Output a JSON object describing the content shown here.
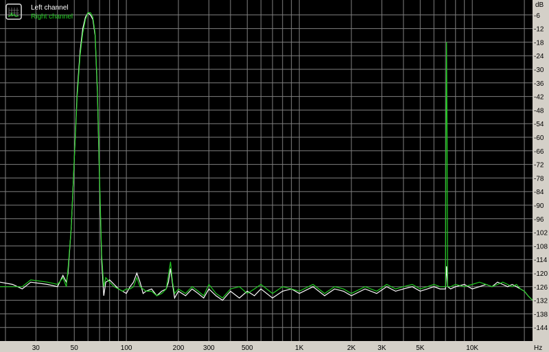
{
  "chart_data": {
    "type": "line",
    "title": "",
    "xlabel": "",
    "ylabel": "",
    "x_unit_label": "Hz",
    "y_unit_label": "dB",
    "x_scale": "log",
    "xlim": [
      18.6,
      22300
    ],
    "ylim": [
      -150,
      0
    ],
    "grid": true,
    "background": "#000000",
    "grid_color": "#808080",
    "legend_position": "top-left",
    "x_gridlines": [
      20,
      30,
      40,
      50,
      60,
      70,
      80,
      90,
      100,
      200,
      300,
      400,
      500,
      600,
      700,
      800,
      900,
      1000,
      2000,
      3000,
      4000,
      5000,
      6000,
      7000,
      8000,
      9000,
      10000,
      20000
    ],
    "x_tick_labels": [
      {
        "value": 30,
        "label": "30"
      },
      {
        "value": 50,
        "label": "50"
      },
      {
        "value": 100,
        "label": "100"
      },
      {
        "value": 200,
        "label": "200"
      },
      {
        "value": 300,
        "label": "300"
      },
      {
        "value": 500,
        "label": "500"
      },
      {
        "value": 1000,
        "label": "1K"
      },
      {
        "value": 2000,
        "label": "2K"
      },
      {
        "value": 3000,
        "label": "3K"
      },
      {
        "value": 5000,
        "label": "5K"
      },
      {
        "value": 10000,
        "label": "10K"
      }
    ],
    "y_ticks": [
      -6,
      -12,
      -18,
      -24,
      -30,
      -36,
      -42,
      -48,
      -54,
      -60,
      -66,
      -72,
      -78,
      -84,
      -90,
      -96,
      -102,
      -108,
      -114,
      -120,
      -126,
      -132,
      -138,
      -144
    ],
    "series": [
      {
        "name": "Left channel",
        "color": "#ffffff",
        "x": [
          18.6,
          22,
          25,
          28,
          35,
          40,
          43,
          45,
          46,
          48,
          50,
          52,
          54,
          56,
          58,
          60,
          62,
          64,
          66,
          68,
          70,
          72,
          74,
          76,
          80,
          85,
          90,
          95,
          100,
          105,
          110,
          115,
          120,
          125,
          130,
          140,
          150,
          160,
          170,
          175,
          180,
          185,
          190,
          200,
          220,
          240,
          260,
          280,
          300,
          330,
          360,
          400,
          450,
          500,
          550,
          600,
          700,
          800,
          900,
          1000,
          1200,
          1400,
          1600,
          1800,
          2000,
          2400,
          2800,
          3200,
          3600,
          4000,
          4500,
          5000,
          5500,
          6000,
          6500,
          7000,
          7100,
          7200,
          7500,
          8000,
          9000,
          10000,
          11000,
          12000,
          13000,
          14000,
          15000,
          16000,
          17000,
          18000,
          19000,
          20000,
          21000,
          22300
        ],
        "y": [
          -124,
          -125,
          -127,
          -124,
          -125,
          -126,
          -121,
          -124,
          -120,
          -100,
          -70,
          -40,
          -22,
          -12,
          -7,
          -5,
          -6,
          -8,
          -15,
          -40,
          -80,
          -115,
          -130,
          -124,
          -123,
          -125,
          -127,
          -128,
          -129,
          -126,
          -124,
          -120,
          -124,
          -129,
          -128,
          -127,
          -130,
          -128,
          -127,
          -124,
          -118,
          -125,
          -131,
          -128,
          -130,
          -127,
          -129,
          -131,
          -127,
          -130,
          -132,
          -128,
          -131,
          -128,
          -130,
          -127,
          -131,
          -128,
          -127,
          -129,
          -126,
          -130,
          -127,
          -128,
          -130,
          -127,
          -129,
          -126,
          -128,
          -127,
          -126,
          -128,
          -127,
          -126,
          -127,
          -127,
          -117,
          -126,
          -127,
          -126,
          -125,
          -127,
          -126,
          -125,
          -126,
          -124,
          -125,
          -126,
          -125,
          -126,
          -127,
          -128,
          -130,
          -132
        ]
      },
      {
        "name": "Right channel",
        "color": "#22cc22",
        "x": [
          18.6,
          22,
          25,
          28,
          35,
          40,
          43,
          45,
          46,
          48,
          50,
          52,
          54,
          56,
          58,
          60,
          62,
          64,
          66,
          68,
          70,
          72,
          74,
          76,
          80,
          85,
          90,
          95,
          100,
          105,
          110,
          115,
          120,
          125,
          130,
          140,
          150,
          160,
          170,
          175,
          180,
          185,
          190,
          200,
          220,
          240,
          260,
          280,
          300,
          330,
          360,
          400,
          450,
          500,
          550,
          600,
          700,
          800,
          900,
          1000,
          1200,
          1400,
          1600,
          1800,
          2000,
          2400,
          2800,
          3200,
          3600,
          4000,
          4500,
          5000,
          5500,
          6000,
          6500,
          7000,
          7050,
          7100,
          7150,
          7200,
          7500,
          8000,
          9000,
          10000,
          11000,
          12000,
          13000,
          14000,
          15000,
          16000,
          17000,
          18000,
          19000,
          20000,
          21000,
          22300
        ],
        "y": [
          -126,
          -126,
          -126,
          -123,
          -124,
          -125,
          -122,
          -126,
          -118,
          -100,
          -70,
          -42,
          -24,
          -14,
          -8,
          -5,
          -5,
          -7,
          -14,
          -38,
          -78,
          -112,
          -126,
          -122,
          -124,
          -126,
          -127,
          -128,
          -127,
          -127,
          -126,
          -122,
          -126,
          -127,
          -128,
          -128,
          -130,
          -129,
          -127,
          -121,
          -115,
          -124,
          -129,
          -127,
          -129,
          -126,
          -128,
          -130,
          -125,
          -129,
          -131,
          -127,
          -126,
          -129,
          -127,
          -125,
          -129,
          -126,
          -127,
          -128,
          -125,
          -129,
          -126,
          -127,
          -129,
          -126,
          -128,
          -125,
          -127,
          -126,
          -125,
          -127,
          -126,
          -125,
          -126,
          -126,
          -60,
          -18,
          -60,
          -126,
          -126,
          -125,
          -126,
          -125,
          -124,
          -125,
          -126,
          -125,
          -124,
          -125,
          -126,
          -125,
          -127,
          -128,
          -130,
          -132
        ]
      }
    ]
  }
}
